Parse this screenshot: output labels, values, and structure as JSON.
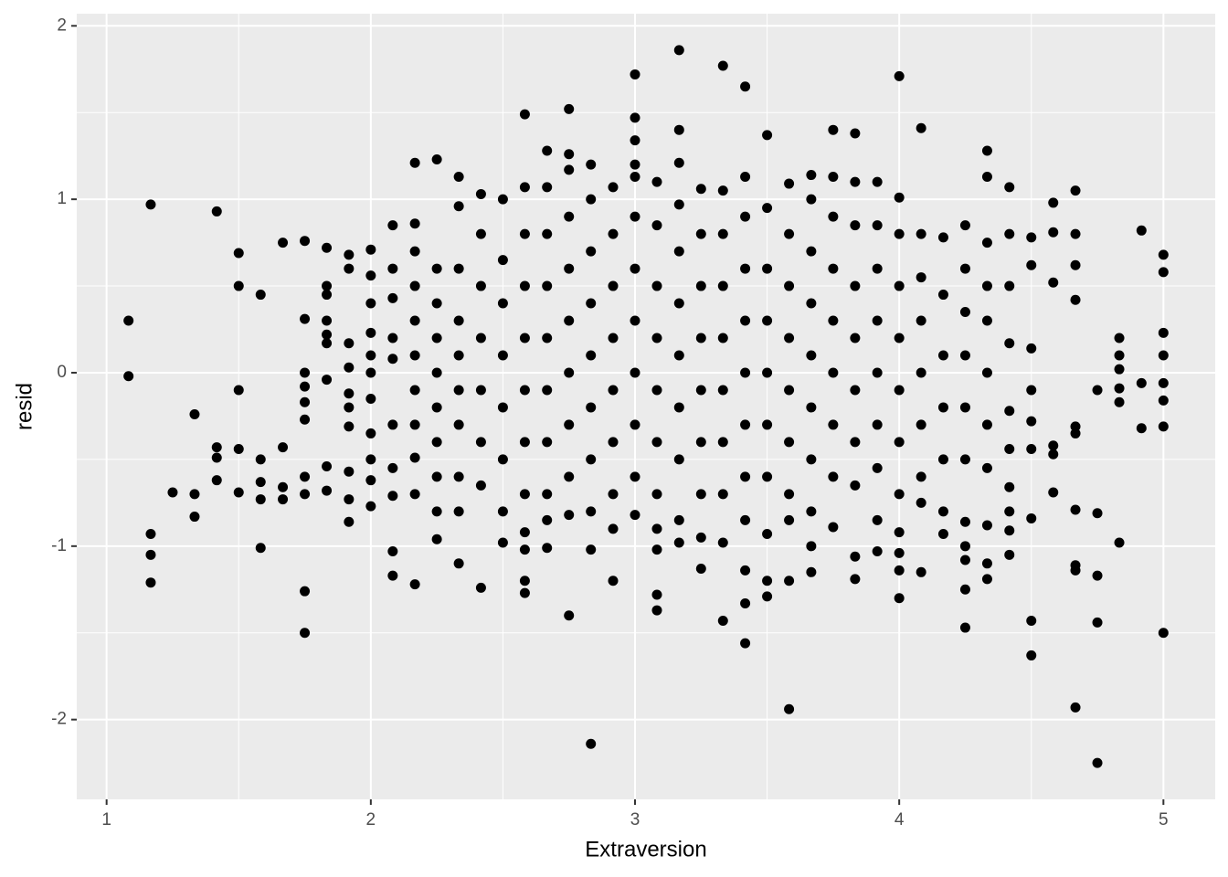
{
  "chart_data": {
    "type": "scatter",
    "x_label": "Extraversion",
    "y_label": "resid",
    "color": "#000000",
    "xlim": [
      0.887,
      5.196
    ],
    "ylim": [
      -2.46,
      2.07
    ],
    "xticks": [
      1,
      2,
      3,
      4,
      5
    ],
    "yticks": [
      -2,
      -1,
      0,
      1,
      2
    ],
    "xminor": [
      1.5,
      2.5,
      3.5,
      4.5
    ],
    "yminor": [
      -1.5,
      -0.5,
      0.5,
      1.5
    ],
    "grid": true,
    "x": [
      1.083,
      1.083,
      1.167,
      1.167,
      1.167,
      1.167,
      1.25,
      1.333,
      1.333,
      1.333,
      1.417,
      1.417,
      1.417,
      1.417,
      1.5,
      1.5,
      1.5,
      1.5,
      1.5,
      1.583,
      1.583,
      1.583,
      1.583,
      1.583,
      1.667,
      1.667,
      1.667,
      1.667,
      1.75,
      1.75,
      1.75,
      1.75,
      1.75,
      1.75,
      1.75,
      1.75,
      1.75,
      1.75,
      1.833,
      1.833,
      1.833,
      1.833,
      1.833,
      1.833,
      1.833,
      1.833,
      1.833,
      1.917,
      1.917,
      1.917,
      1.917,
      1.917,
      1.917,
      1.917,
      1.917,
      1.917,
      1.917,
      2.0,
      2.0,
      2.0,
      2.0,
      2.0,
      2.0,
      2.0,
      2.0,
      2.0,
      2.0,
      2.0,
      2.083,
      2.083,
      2.083,
      2.083,
      2.083,
      2.083,
      2.083,
      2.083,
      2.083,
      2.083,
      2.167,
      2.167,
      2.167,
      2.167,
      2.167,
      2.167,
      2.167,
      2.167,
      2.167,
      2.167,
      2.167,
      2.25,
      2.25,
      2.25,
      2.25,
      2.25,
      2.25,
      2.25,
      2.25,
      2.25,
      2.25,
      2.333,
      2.333,
      2.333,
      2.333,
      2.333,
      2.333,
      2.333,
      2.333,
      2.333,
      2.333,
      2.417,
      2.417,
      2.417,
      2.417,
      2.417,
      2.417,
      2.417,
      2.417,
      2.5,
      2.5,
      2.5,
      2.5,
      2.5,
      2.5,
      2.5,
      2.5,
      2.583,
      2.583,
      2.583,
      2.583,
      2.583,
      2.583,
      2.583,
      2.583,
      2.583,
      2.583,
      2.583,
      2.583,
      2.667,
      2.667,
      2.667,
      2.667,
      2.667,
      2.667,
      2.667,
      2.667,
      2.667,
      2.667,
      2.75,
      2.75,
      2.75,
      2.75,
      2.75,
      2.75,
      2.75,
      2.75,
      2.75,
      2.75,
      2.75,
      2.833,
      2.833,
      2.833,
      2.833,
      2.833,
      2.833,
      2.833,
      2.833,
      2.833,
      2.833,
      2.917,
      2.917,
      2.917,
      2.917,
      2.917,
      2.917,
      2.917,
      2.917,
      2.917,
      3.0,
      3.0,
      3.0,
      3.0,
      3.0,
      3.0,
      3.0,
      3.0,
      3.0,
      3.0,
      3.0,
      3.0,
      3.083,
      3.083,
      3.083,
      3.083,
      3.083,
      3.083,
      3.083,
      3.083,
      3.083,
      3.083,
      3.083,
      3.167,
      3.167,
      3.167,
      3.167,
      3.167,
      3.167,
      3.167,
      3.167,
      3.167,
      3.167,
      3.167,
      3.25,
      3.25,
      3.25,
      3.25,
      3.25,
      3.25,
      3.25,
      3.25,
      3.25,
      3.333,
      3.333,
      3.333,
      3.333,
      3.333,
      3.333,
      3.333,
      3.333,
      3.333,
      3.333,
      3.417,
      3.417,
      3.417,
      3.417,
      3.417,
      3.417,
      3.417,
      3.417,
      3.417,
      3.417,
      3.417,
      3.417,
      3.5,
      3.5,
      3.5,
      3.5,
      3.5,
      3.5,
      3.5,
      3.5,
      3.5,
      3.5,
      3.583,
      3.583,
      3.583,
      3.583,
      3.583,
      3.583,
      3.583,
      3.583,
      3.583,
      3.583,
      3.667,
      3.667,
      3.667,
      3.667,
      3.667,
      3.667,
      3.667,
      3.667,
      3.667,
      3.667,
      3.75,
      3.75,
      3.75,
      3.75,
      3.75,
      3.75,
      3.75,
      3.75,
      3.75,
      3.833,
      3.833,
      3.833,
      3.833,
      3.833,
      3.833,
      3.833,
      3.833,
      3.833,
      3.833,
      3.917,
      3.917,
      3.917,
      3.917,
      3.917,
      3.917,
      3.917,
      3.917,
      3.917,
      4.0,
      4.0,
      4.0,
      4.0,
      4.0,
      4.0,
      4.0,
      4.0,
      4.0,
      4.0,
      4.0,
      4.0,
      4.083,
      4.083,
      4.083,
      4.083,
      4.083,
      4.083,
      4.083,
      4.083,
      4.083,
      4.167,
      4.167,
      4.167,
      4.167,
      4.167,
      4.167,
      4.167,
      4.25,
      4.25,
      4.25,
      4.25,
      4.25,
      4.25,
      4.25,
      4.25,
      4.25,
      4.25,
      4.25,
      4.333,
      4.333,
      4.333,
      4.333,
      4.333,
      4.333,
      4.333,
      4.333,
      4.333,
      4.333,
      4.333,
      4.417,
      4.417,
      4.417,
      4.417,
      4.417,
      4.417,
      4.417,
      4.417,
      4.417,
      4.417,
      4.5,
      4.5,
      4.5,
      4.5,
      4.5,
      4.5,
      4.5,
      4.5,
      4.5,
      4.583,
      4.583,
      4.583,
      4.583,
      4.583,
      4.583,
      4.667,
      4.667,
      4.667,
      4.667,
      4.667,
      4.667,
      4.667,
      4.667,
      4.667,
      4.667,
      4.75,
      4.75,
      4.75,
      4.75,
      4.75,
      4.833,
      4.833,
      4.833,
      4.833,
      4.833,
      4.833,
      4.917,
      4.917,
      4.917,
      5.0,
      5.0,
      5.0,
      5.0,
      5.0,
      5.0,
      5.0,
      5.0
    ],
    "values": [
      0.3,
      -0.02,
      0.97,
      -0.93,
      -1.05,
      -1.21,
      -0.69,
      -0.24,
      -0.7,
      -0.83,
      0.93,
      -0.43,
      -0.49,
      -0.62,
      0.69,
      0.5,
      -0.1,
      -0.44,
      -0.69,
      0.45,
      -0.5,
      -0.63,
      -0.73,
      -1.01,
      0.75,
      -0.43,
      -0.66,
      -0.73,
      0.76,
      0.31,
      0,
      -0.08,
      -0.17,
      -0.27,
      -0.6,
      -0.7,
      -1.26,
      -1.5,
      0.72,
      0.5,
      0.45,
      0.3,
      0.22,
      0.17,
      -0.04,
      -0.54,
      -0.68,
      0.68,
      0.6,
      0.17,
      0.03,
      -0.12,
      -0.2,
      -0.31,
      -0.57,
      -0.73,
      -0.86,
      0.71,
      0.56,
      0.4,
      0.23,
      0.1,
      0,
      -0.15,
      -0.35,
      -0.5,
      -0.62,
      -0.77,
      0.85,
      0.6,
      0.43,
      0.2,
      0.08,
      -0.3,
      -0.55,
      -0.71,
      -1.03,
      -1.17,
      1.21,
      0.86,
      0.7,
      0.5,
      0.3,
      0.1,
      -0.1,
      -0.3,
      -0.49,
      -0.7,
      -1.22,
      1.23,
      0.6,
      0.4,
      0.2,
      0,
      -0.2,
      -0.4,
      -0.6,
      -0.8,
      -0.96,
      1.13,
      0.96,
      0.6,
      0.3,
      0.1,
      -0.1,
      -0.3,
      -0.6,
      -0.8,
      -1.1,
      1.03,
      0.8,
      0.5,
      0.2,
      -0.1,
      -0.4,
      -0.65,
      -1.24,
      1.0,
      0.65,
      0.4,
      0.1,
      -0.2,
      -0.5,
      -0.8,
      -0.98,
      1.49,
      1.07,
      0.8,
      0.5,
      0.2,
      -0.1,
      -0.4,
      -0.7,
      -0.92,
      -1.02,
      -1.2,
      -1.27,
      1.28,
      1.07,
      0.8,
      0.5,
      0.2,
      -0.1,
      -0.4,
      -0.7,
      -0.85,
      -1.01,
      1.52,
      1.26,
      1.17,
      0.9,
      0.6,
      0.3,
      0,
      -0.3,
      -0.6,
      -0.82,
      -1.4,
      1.2,
      1.0,
      0.7,
      0.4,
      0.1,
      -0.2,
      -0.5,
      -0.8,
      -1.02,
      -2.14,
      1.07,
      0.8,
      0.5,
      0.2,
      -0.1,
      -0.4,
      -0.7,
      -0.9,
      -1.2,
      1.72,
      1.47,
      1.34,
      1.2,
      1.13,
      0.9,
      0.6,
      0.3,
      0,
      -0.3,
      -0.6,
      -0.82,
      1.1,
      0.85,
      0.5,
      0.2,
      -0.1,
      -0.4,
      -0.7,
      -0.9,
      -1.02,
      -1.28,
      -1.37,
      1.86,
      1.4,
      1.21,
      0.97,
      0.7,
      0.4,
      0.1,
      -0.2,
      -0.5,
      -0.85,
      -0.98,
      1.06,
      0.8,
      0.5,
      0.2,
      -0.1,
      -0.4,
      -0.7,
      -0.95,
      -1.13,
      1.77,
      1.05,
      0.8,
      0.5,
      0.2,
      -0.1,
      -0.4,
      -0.7,
      -0.98,
      -1.43,
      1.65,
      1.13,
      0.9,
      0.6,
      0.3,
      0,
      -0.3,
      -0.6,
      -0.85,
      -1.14,
      -1.33,
      -1.56,
      1.37,
      0.95,
      0.6,
      0.3,
      0,
      -0.3,
      -0.6,
      -0.93,
      -1.2,
      -1.29,
      1.09,
      0.8,
      0.5,
      0.2,
      -0.1,
      -0.4,
      -0.7,
      -0.85,
      -1.2,
      -1.94,
      1.14,
      1.0,
      0.7,
      0.4,
      0.1,
      -0.2,
      -0.5,
      -0.8,
      -1.0,
      -1.15,
      1.4,
      1.13,
      0.9,
      0.6,
      0.3,
      0,
      -0.3,
      -0.6,
      -0.89,
      1.38,
      1.1,
      0.85,
      0.5,
      0.2,
      -0.1,
      -0.4,
      -0.65,
      -1.06,
      -1.19,
      1.1,
      0.85,
      0.6,
      0.3,
      0,
      -0.3,
      -0.55,
      -0.85,
      -1.03,
      1.71,
      1.01,
      0.8,
      0.5,
      0.2,
      -0.1,
      -0.4,
      -0.7,
      -0.92,
      -1.04,
      -1.14,
      -1.3,
      1.41,
      0.8,
      0.55,
      0.3,
      0,
      -0.3,
      -0.6,
      -0.75,
      -1.15,
      0.78,
      0.45,
      0.1,
      -0.2,
      -0.5,
      -0.8,
      -0.93,
      0.85,
      0.6,
      0.35,
      0.1,
      -0.2,
      -0.5,
      -0.86,
      -1.0,
      -1.08,
      -1.25,
      -1.47,
      1.28,
      1.13,
      0.75,
      0.5,
      0.3,
      0,
      -0.3,
      -0.55,
      -0.88,
      -1.1,
      -1.19,
      1.07,
      0.8,
      0.5,
      0.17,
      -0.22,
      -0.44,
      -0.66,
      -0.8,
      -0.91,
      -1.05,
      0.78,
      0.62,
      0.14,
      -0.1,
      -0.28,
      -0.44,
      -0.84,
      -1.43,
      -1.63,
      0.98,
      0.81,
      0.52,
      -0.42,
      -0.47,
      -0.69,
      1.05,
      0.8,
      0.62,
      0.42,
      -0.31,
      -0.35,
      -0.79,
      -1.11,
      -1.14,
      -1.93,
      -0.1,
      -0.81,
      -1.17,
      -1.44,
      -2.25,
      0.2,
      0.1,
      0.02,
      -0.09,
      -0.17,
      -0.98,
      0.82,
      -0.06,
      -0.32,
      0.68,
      0.58,
      0.23,
      0.1,
      -0.06,
      -0.16,
      -0.31,
      -1.5
    ]
  }
}
